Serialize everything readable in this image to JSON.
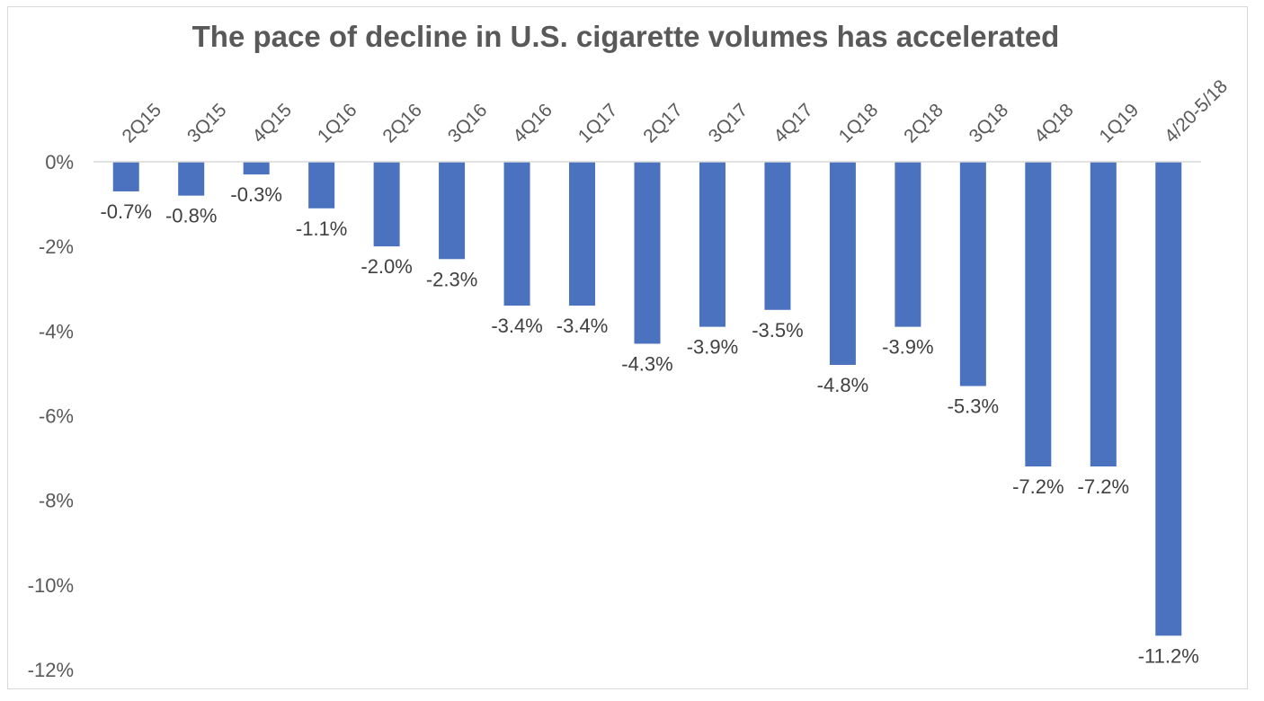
{
  "chart_data": {
    "type": "bar",
    "title": "The pace of decline in U.S. cigarette volumes has accelerated",
    "categories": [
      "2Q15",
      "3Q15",
      "4Q15",
      "1Q16",
      "2Q16",
      "3Q16",
      "4Q16",
      "1Q17",
      "2Q17",
      "3Q17",
      "4Q17",
      "1Q18",
      "2Q18",
      "3Q18",
      "4Q18",
      "1Q19",
      "4/20-5/18"
    ],
    "values": [
      -0.7,
      -0.8,
      -0.3,
      -1.1,
      -2.0,
      -2.3,
      -3.4,
      -3.4,
      -4.3,
      -3.9,
      -3.5,
      -4.8,
      -3.9,
      -5.3,
      -7.2,
      -7.2,
      -11.2
    ],
    "data_labels": [
      "-0.7%",
      "-0.8%",
      "-0.3%",
      "-1.1%",
      "-2.0%",
      "-2.3%",
      "-3.4%",
      "-3.4%",
      "-4.3%",
      "-3.9%",
      "-3.5%",
      "-4.8%",
      "-3.9%",
      "-5.3%",
      "-7.2%",
      "-7.2%",
      "-11.2%"
    ],
    "y_ticks": [
      0,
      -2,
      -4,
      -6,
      -8,
      -10,
      -12
    ],
    "y_tick_labels": [
      "0%",
      "-2%",
      "-4%",
      "-6%",
      "-8%",
      "-10%",
      "-12%"
    ],
    "ylim": [
      -12,
      0
    ],
    "xlabel": "",
    "ylabel": "",
    "grid": false,
    "legend": "none",
    "category_axis_position": "top",
    "bar_color": "#4a72be",
    "axis_color": "#d9d9d9",
    "text_color": "#595959"
  }
}
